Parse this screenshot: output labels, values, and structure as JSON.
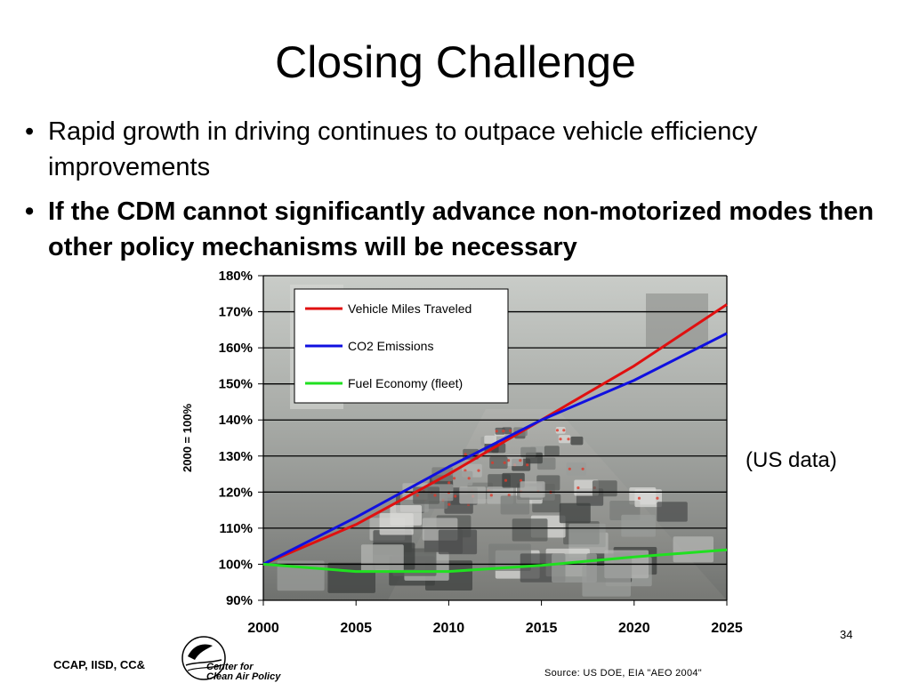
{
  "slide": {
    "title": "Closing Challenge",
    "bullets": [
      {
        "text": "Rapid growth in driving continues to outpace vehicle efficiency improvements",
        "bold": false
      },
      {
        "text": "If the CDM cannot significantly advance non-motorized modes then other policy mechanisms will be necessary",
        "bold": true
      }
    ],
    "side_note": "(US data)",
    "page_number": "34",
    "footer_left": "CCAP, IISD, CC&",
    "logo_text_line1": "Center for",
    "logo_text_line2": "Clean Air Policy",
    "source": "Source: US DOE, EIA \"AEO 2004\""
  },
  "chart_data": {
    "type": "line",
    "title": "",
    "xlabel": "",
    "ylabel": "2000 = 100%",
    "x": [
      2000,
      2005,
      2010,
      2015,
      2020,
      2025
    ],
    "xlim": [
      2000,
      2025
    ],
    "ylim": [
      90,
      180
    ],
    "ytick_step": 10,
    "y_tick_suffix": "%",
    "grid": true,
    "legend": "top-left",
    "series": [
      {
        "name": "Vehicle Miles Traveled",
        "color": "#e01010",
        "values": [
          100,
          111,
          125,
          140,
          155,
          172
        ]
      },
      {
        "name": "CO2 Emissions",
        "color": "#1010e0",
        "values": [
          100,
          113,
          127,
          140,
          151,
          164
        ]
      },
      {
        "name": "Fuel Economy (fleet)",
        "color": "#20e020",
        "values": [
          100,
          98,
          98,
          99.7,
          102,
          104
        ]
      }
    ]
  }
}
